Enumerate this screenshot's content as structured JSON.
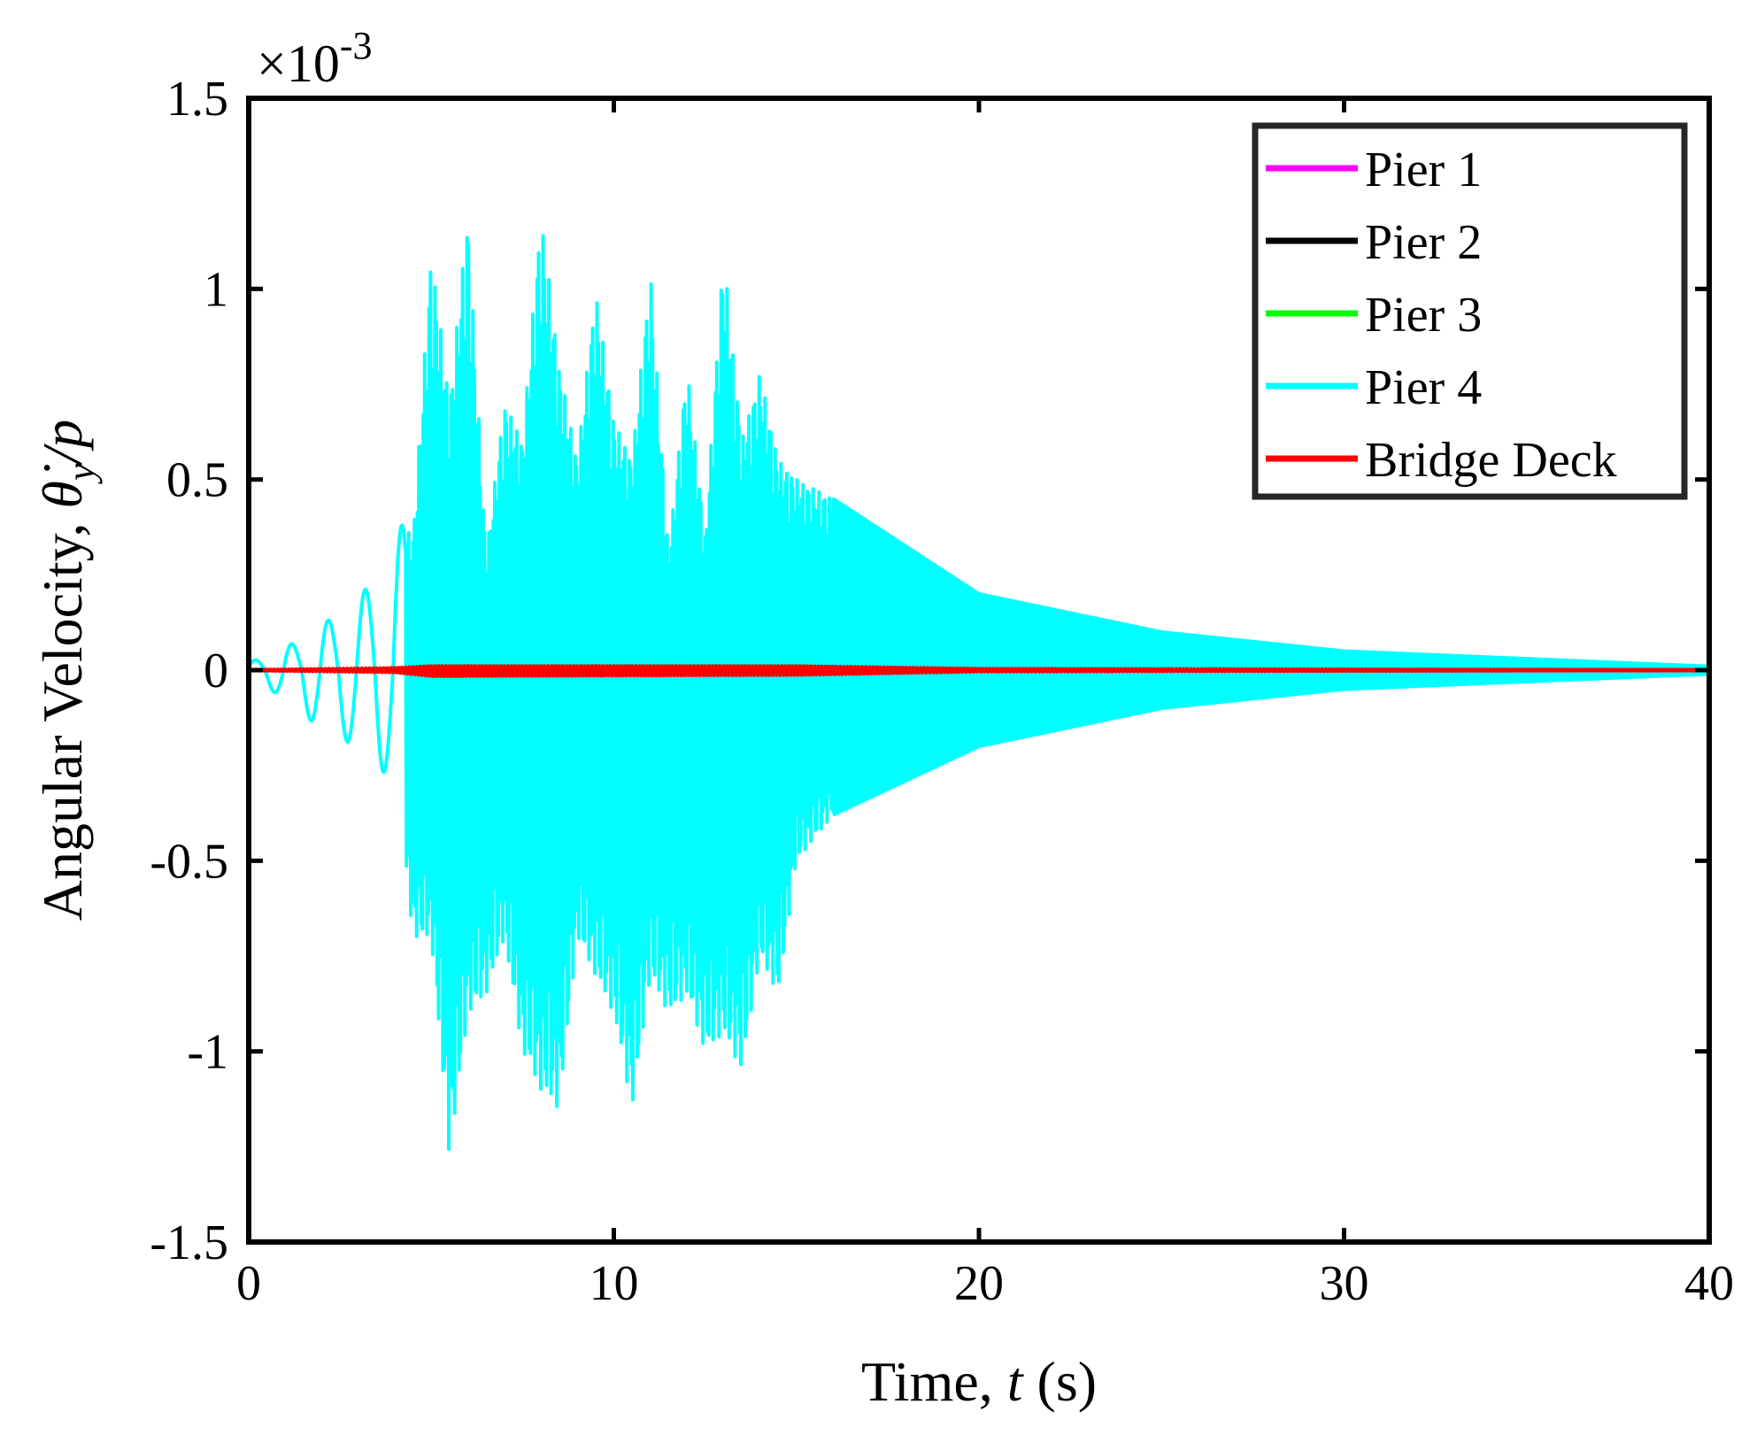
{
  "chart_data": {
    "type": "line",
    "title": "",
    "xlabel": "Time, t (s)",
    "xlabel_parts": {
      "pre": "Time, ",
      "var": "t",
      "post": " (s)"
    },
    "ylabel": "Angular Velocity, θ̇_y/p",
    "ylabel_parts": {
      "pre": "Angular Velocity, ",
      "var": "θ̇",
      "sub": "y",
      "post": "/p"
    },
    "y_multiplier": "×10",
    "y_exponent": "-3",
    "xlim": [
      0,
      40
    ],
    "ylim": [
      -1.5,
      1.5
    ],
    "xticks": [
      0,
      10,
      20,
      30,
      40
    ],
    "xtick_labels": [
      "0",
      "10",
      "20",
      "30",
      "40"
    ],
    "yticks": [
      -1.5,
      -1,
      -0.5,
      0,
      0.5,
      1,
      1.5
    ],
    "ytick_labels": [
      "-1.5",
      "-1",
      "-0.5",
      "0",
      "0.5",
      "1",
      "1.5"
    ],
    "grid": false,
    "legend_position": "top-right",
    "series": [
      {
        "name": "Pier 1",
        "color": "#ff00ff",
        "envelope_t": [
          0,
          40
        ],
        "upper": [
          0,
          0
        ],
        "lower": [
          0,
          0
        ]
      },
      {
        "name": "Pier 2",
        "color": "#000000",
        "envelope_t": [
          0,
          40
        ],
        "upper": [
          0,
          0
        ],
        "lower": [
          0,
          0
        ]
      },
      {
        "name": "Pier 3",
        "color": "#00ff00",
        "envelope_t": [
          0,
          40
        ],
        "upper": [
          0,
          0
        ],
        "lower": [
          0,
          0
        ]
      },
      {
        "name": "Pier 4",
        "color": "#00ffff",
        "envelope_t": [
          0,
          0.5,
          1,
          1.5,
          2,
          2.5,
          3,
          3.5,
          4,
          4.5,
          5,
          5.5,
          6,
          6.5,
          7,
          7.5,
          8,
          8.5,
          9,
          9.5,
          10,
          10.5,
          11,
          11.5,
          12,
          12.5,
          13,
          13.5,
          14,
          14.5,
          15,
          16,
          20,
          25,
          30,
          40
        ],
        "upper": [
          0.03,
          0.02,
          0.08,
          0.05,
          0.15,
          0.1,
          0.22,
          0.2,
          0.4,
          0.35,
          1.1,
          0.7,
          1.2,
          0.3,
          0.7,
          0.6,
          1.2,
          0.8,
          0.55,
          1.0,
          0.65,
          0.55,
          1.05,
          0.3,
          0.8,
          0.35,
          1.1,
          0.6,
          0.78,
          0.55,
          0.5,
          0.45,
          0.2,
          0.1,
          0.05,
          0.01
        ],
        "lower": [
          -0.03,
          -0.05,
          -0.07,
          -0.12,
          -0.15,
          -0.18,
          -0.2,
          -0.28,
          -0.25,
          -0.7,
          -0.7,
          -1.28,
          -0.9,
          -0.85,
          -0.7,
          -1.0,
          -1.1,
          -1.15,
          -0.7,
          -0.8,
          -0.9,
          -1.15,
          -0.8,
          -0.9,
          -0.85,
          -1.0,
          -0.95,
          -1.05,
          -0.75,
          -0.85,
          -0.5,
          -0.38,
          -0.2,
          -0.1,
          -0.05,
          -0.01
        ]
      },
      {
        "name": "Bridge Deck",
        "color": "#ff0000",
        "envelope_t": [
          0,
          4,
          5,
          15,
          20,
          40
        ],
        "upper": [
          0,
          0.005,
          0.01,
          0.01,
          0.003,
          0
        ],
        "lower": [
          0,
          -0.005,
          -0.015,
          -0.012,
          -0.003,
          0
        ]
      }
    ]
  }
}
